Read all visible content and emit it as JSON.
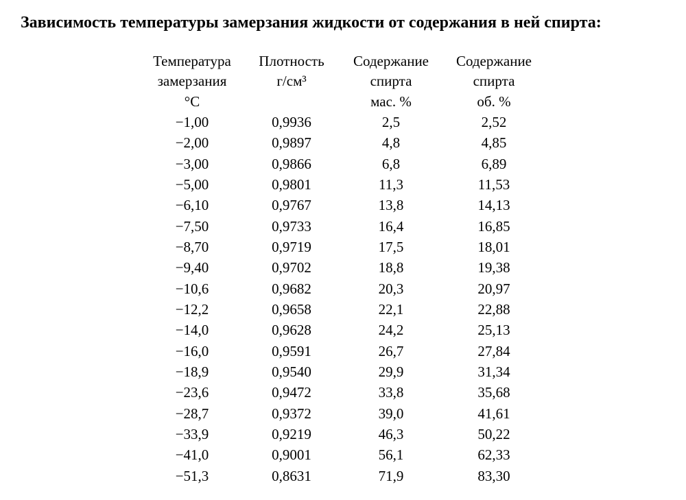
{
  "title": "Зависимость температуры замерзания жидкости от содержания в ней спирта:",
  "table": {
    "columns": [
      {
        "line1": "Температура",
        "line2": "замерзания",
        "line3": "°C"
      },
      {
        "line1": "Плотность",
        "line2": "г/см³",
        "line3": ""
      },
      {
        "line1": "Содержание",
        "line2": "спирта",
        "line3": "мас. %"
      },
      {
        "line1": "Содержание",
        "line2": "спирта",
        "line3": "об. %"
      }
    ],
    "rows": [
      [
        "−1,00",
        "0,9936",
        "2,5",
        "2,52"
      ],
      [
        "−2,00",
        "0,9897",
        "4,8",
        "4,85"
      ],
      [
        "−3,00",
        "0,9866",
        "6,8",
        "6,89"
      ],
      [
        "−5,00",
        "0,9801",
        "11,3",
        "11,53"
      ],
      [
        "−6,10",
        "0,9767",
        "13,8",
        "14,13"
      ],
      [
        "−7,50",
        "0,9733",
        "16,4",
        "16,85"
      ],
      [
        "−8,70",
        "0,9719",
        "17,5",
        "18,01"
      ],
      [
        "−9,40",
        "0,9702",
        "18,8",
        "19,38"
      ],
      [
        "−10,6",
        "0,9682",
        "20,3",
        "20,97"
      ],
      [
        "−12,2",
        "0,9658",
        "22,1",
        "22,88"
      ],
      [
        "−14,0",
        "0,9628",
        "24,2",
        "25,13"
      ],
      [
        "−16,0",
        "0,9591",
        "26,7",
        "27,84"
      ],
      [
        "−18,9",
        "0,9540",
        "29,9",
        "31,34"
      ],
      [
        "−23,6",
        "0,9472",
        "33,8",
        "35,68"
      ],
      [
        "−28,7",
        "0,9372",
        "39,0",
        "41,61"
      ],
      [
        "−33,9",
        "0,9219",
        "46,3",
        "50,22"
      ],
      [
        "−41,0",
        "0,9001",
        "56,1",
        "62,33"
      ],
      [
        "−51,3",
        "0,8631",
        "71,9",
        "83,30"
      ]
    ]
  }
}
